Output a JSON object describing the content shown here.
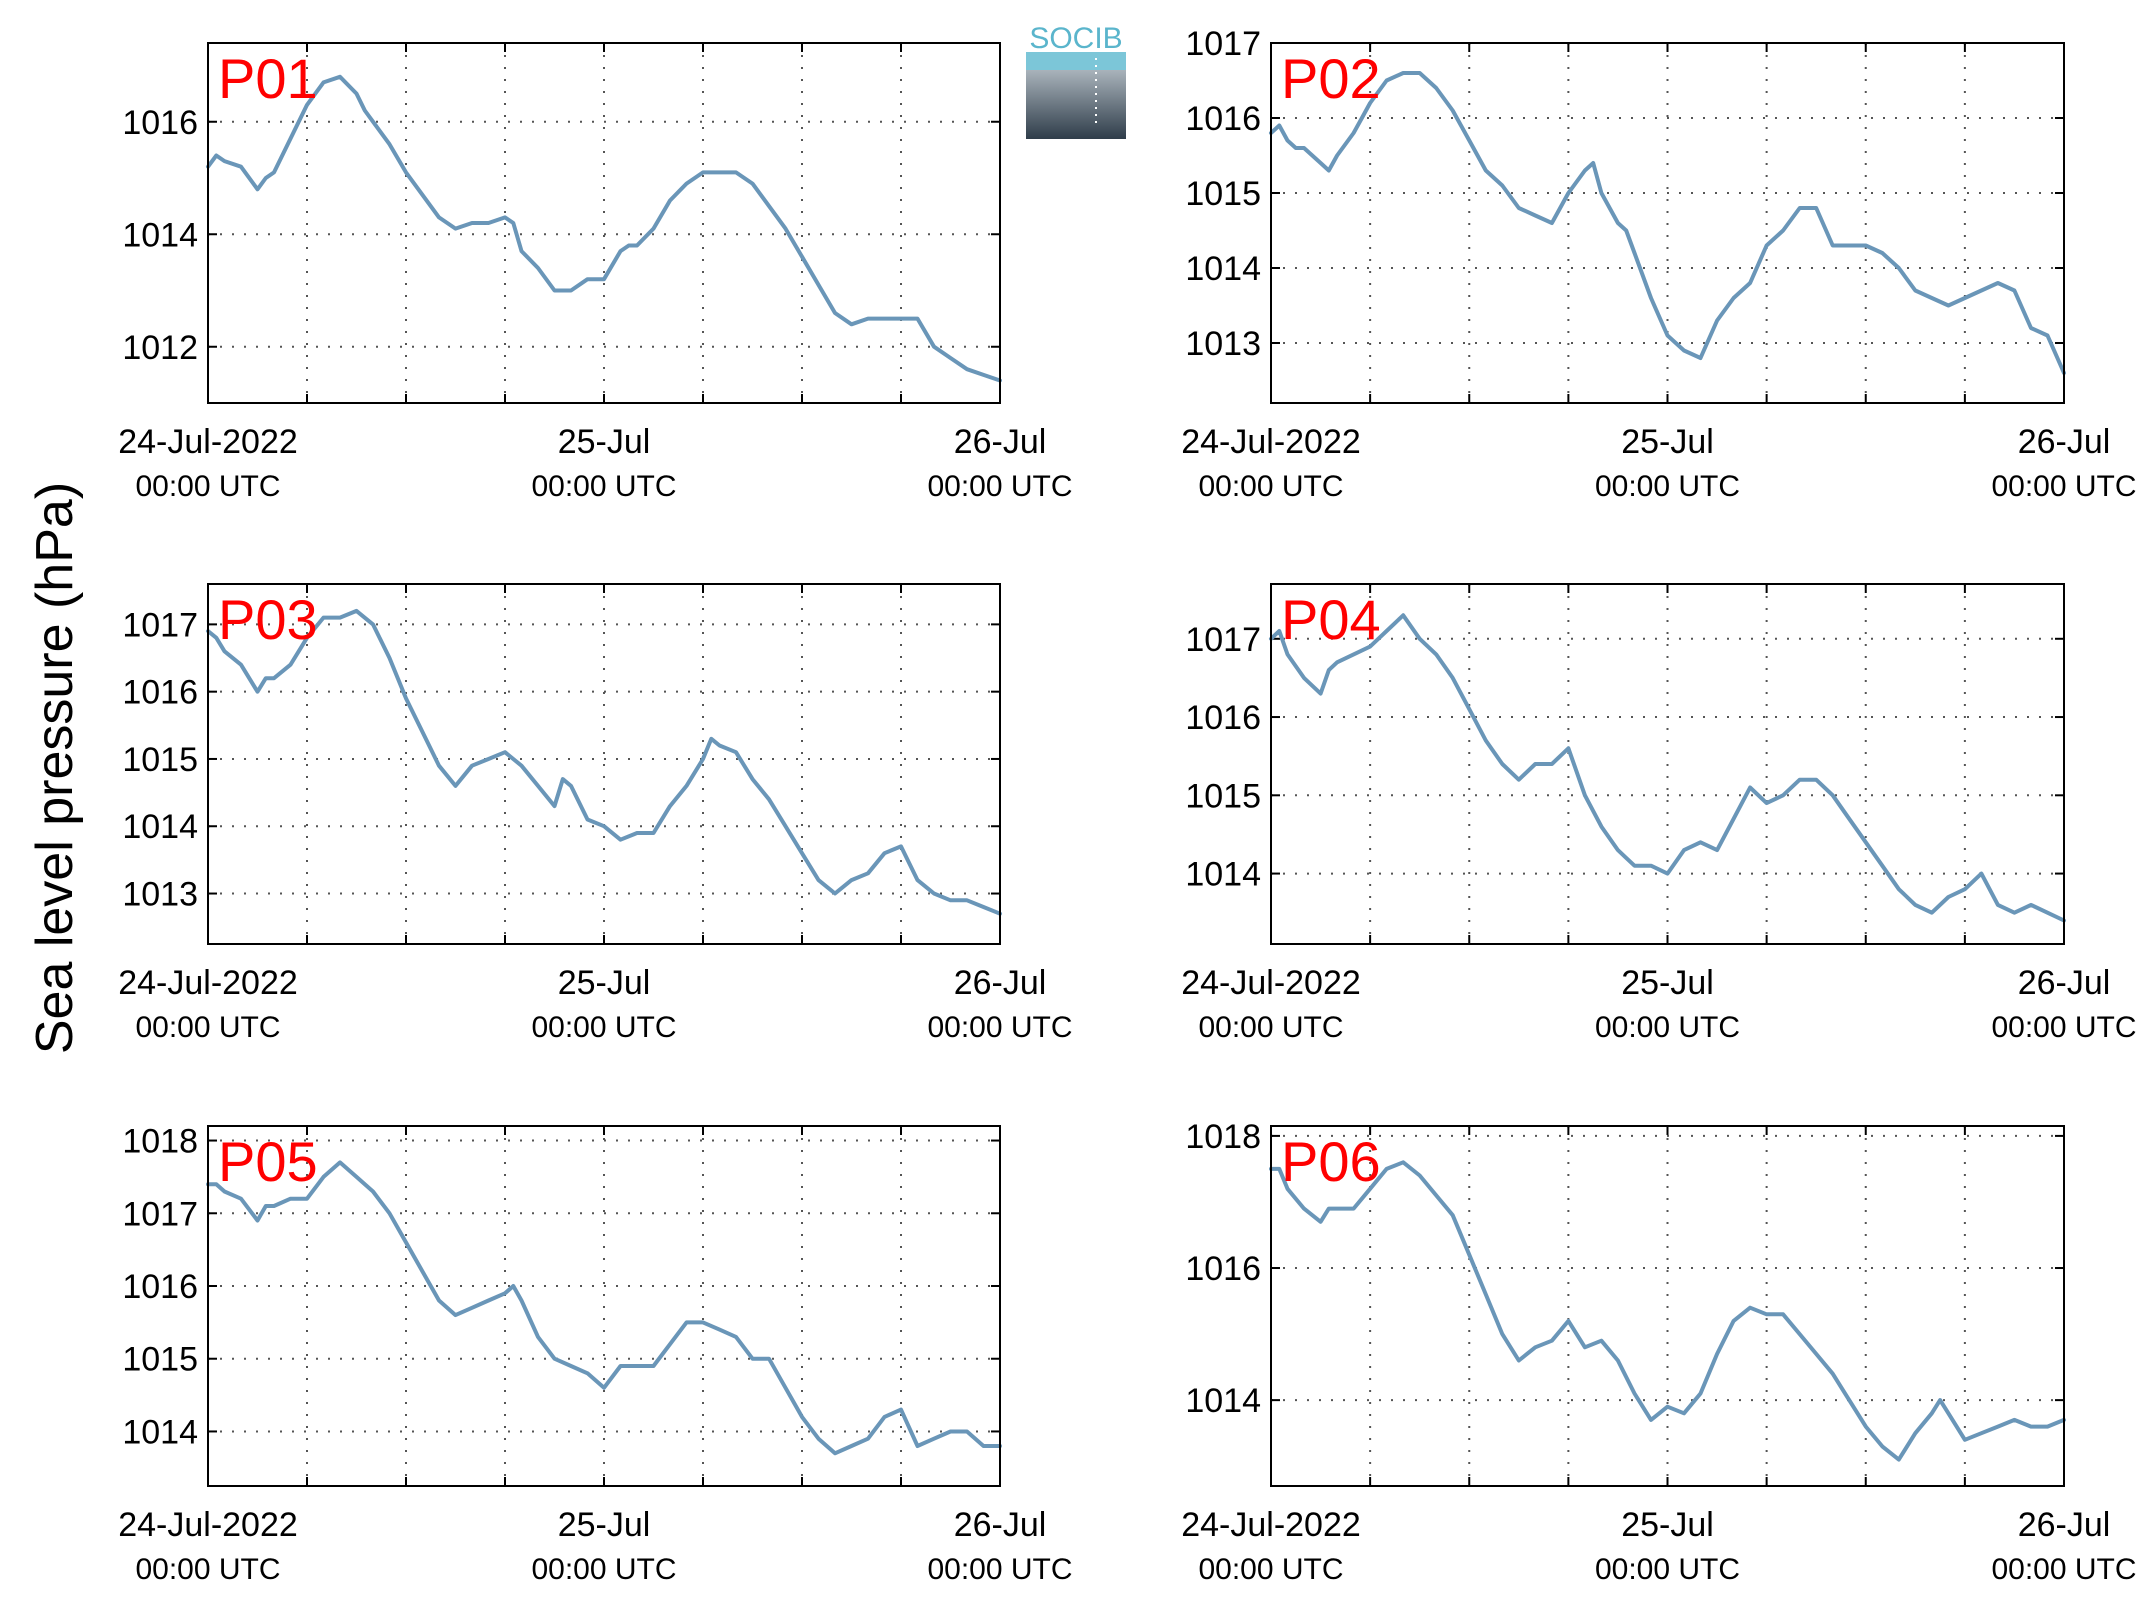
{
  "figure": {
    "ylabel": "Sea level pressure (hPa)",
    "logo_text": "SOCIB",
    "colors": {
      "line": "#6a96b8",
      "panel_label": "#ff0000",
      "grid": "#555555"
    }
  },
  "chart_data": [
    {
      "type": "line",
      "label": "P01",
      "xlim": [
        0,
        48
      ],
      "ylim": [
        1011.0,
        1017.4
      ],
      "yticks": [
        1012,
        1014,
        1016
      ],
      "xtick_labels": [
        {
          "date": "24-Jul-2022",
          "time": "00:00 UTC"
        },
        {
          "date": "25-Jul",
          "time": "00:00 UTC"
        },
        {
          "date": "26-Jul",
          "time": "00:00 UTC"
        }
      ],
      "x": [
        0,
        0.5,
        1,
        2,
        3,
        3.5,
        4,
        5,
        6,
        7,
        8,
        9,
        9.5,
        10,
        11,
        12,
        13,
        14,
        15,
        16,
        17,
        18,
        18.5,
        19,
        20,
        21,
        22,
        23,
        24,
        25,
        25.5,
        26,
        27,
        28,
        29,
        30,
        31,
        32,
        33,
        34,
        35,
        36,
        37,
        38,
        39,
        40,
        41,
        42,
        43,
        44,
        45,
        46,
        47,
        48
      ],
      "y": [
        1015.2,
        1015.4,
        1015.3,
        1015.2,
        1014.8,
        1015.0,
        1015.1,
        1015.7,
        1016.3,
        1016.7,
        1016.8,
        1016.5,
        1016.2,
        1016.0,
        1015.6,
        1015.1,
        1014.7,
        1014.3,
        1014.1,
        1014.2,
        1014.2,
        1014.3,
        1014.2,
        1013.7,
        1013.4,
        1013.0,
        1013.0,
        1013.2,
        1013.2,
        1013.7,
        1013.8,
        1013.8,
        1014.1,
        1014.6,
        1014.9,
        1015.1,
        1015.1,
        1015.1,
        1014.9,
        1014.5,
        1014.1,
        1013.6,
        1013.1,
        1012.6,
        1012.4,
        1012.5,
        1012.5,
        1012.5,
        1012.5,
        1012.0,
        1011.8,
        1011.6,
        1011.5,
        1011.4
      ]
    },
    {
      "type": "line",
      "label": "P02",
      "xlim": [
        0,
        48
      ],
      "ylim": [
        1012.2,
        1017.0
      ],
      "yticks": [
        1013,
        1014,
        1015,
        1016,
        1017
      ],
      "xtick_labels": [
        {
          "date": "24-Jul-2022",
          "time": "00:00 UTC"
        },
        {
          "date": "25-Jul",
          "time": "00:00 UTC"
        },
        {
          "date": "26-Jul",
          "time": "00:00 UTC"
        }
      ],
      "x": [
        0,
        0.5,
        1,
        1.5,
        2,
        3,
        3.5,
        4,
        5,
        5.5,
        6,
        7,
        8,
        9,
        10,
        11,
        12,
        13,
        14,
        15,
        16,
        17,
        18,
        19,
        19.5,
        20,
        21,
        21.5,
        22,
        23,
        24,
        25,
        26,
        27,
        28,
        29,
        30,
        31,
        32,
        33,
        34,
        35,
        36,
        37,
        38,
        39,
        40,
        41,
        42,
        43,
        44,
        45,
        46,
        47,
        48
      ],
      "y": [
        1015.8,
        1015.9,
        1015.7,
        1015.6,
        1015.6,
        1015.4,
        1015.3,
        1015.5,
        1015.8,
        1016.0,
        1016.2,
        1016.5,
        1016.6,
        1016.6,
        1016.4,
        1016.1,
        1015.7,
        1015.3,
        1015.1,
        1014.8,
        1014.7,
        1014.6,
        1015.0,
        1015.3,
        1015.4,
        1015.0,
        1014.6,
        1014.5,
        1014.2,
        1013.6,
        1013.1,
        1012.9,
        1012.8,
        1013.3,
        1013.6,
        1013.8,
        1014.3,
        1014.5,
        1014.8,
        1014.8,
        1014.3,
        1014.3,
        1014.3,
        1014.2,
        1014.0,
        1013.7,
        1013.6,
        1013.5,
        1013.6,
        1013.7,
        1013.8,
        1013.7,
        1013.2,
        1013.1,
        1012.6
      ]
    },
    {
      "type": "line",
      "label": "P03",
      "xlim": [
        0,
        48
      ],
      "ylim": [
        1012.25,
        1017.6
      ],
      "yticks": [
        1013,
        1014,
        1015,
        1016,
        1017
      ],
      "xtick_labels": [
        {
          "date": "24-Jul-2022",
          "time": "00:00 UTC"
        },
        {
          "date": "25-Jul",
          "time": "00:00 UTC"
        },
        {
          "date": "26-Jul",
          "time": "00:00 UTC"
        }
      ],
      "x": [
        0,
        0.5,
        1,
        2,
        3,
        3.5,
        4,
        5,
        6,
        7,
        8,
        9,
        10,
        11,
        12,
        13,
        14,
        15,
        16,
        17,
        18,
        19,
        20,
        21,
        21.5,
        22,
        23,
        24,
        25,
        26,
        27,
        28,
        29,
        30,
        30.5,
        31,
        32,
        33,
        34,
        35,
        36,
        37,
        38,
        39,
        40,
        41,
        42,
        43,
        44,
        45,
        46,
        47,
        48
      ],
      "y": [
        1016.9,
        1016.8,
        1016.6,
        1016.4,
        1016.0,
        1016.2,
        1016.2,
        1016.4,
        1016.8,
        1017.1,
        1017.1,
        1017.2,
        1017.0,
        1016.5,
        1015.9,
        1015.4,
        1014.9,
        1014.6,
        1014.9,
        1015.0,
        1015.1,
        1014.9,
        1014.6,
        1014.3,
        1014.7,
        1014.6,
        1014.1,
        1014.0,
        1013.8,
        1013.9,
        1013.9,
        1014.3,
        1014.6,
        1015.0,
        1015.3,
        1015.2,
        1015.1,
        1014.7,
        1014.4,
        1014.0,
        1013.6,
        1013.2,
        1013.0,
        1013.2,
        1013.3,
        1013.6,
        1013.7,
        1013.2,
        1013.0,
        1012.9,
        1012.9,
        1012.8,
        1012.7
      ]
    },
    {
      "type": "line",
      "label": "P04",
      "xlim": [
        0,
        48
      ],
      "ylim": [
        1013.1,
        1017.7
      ],
      "yticks": [
        1014,
        1015,
        1016,
        1017
      ],
      "xtick_labels": [
        {
          "date": "24-Jul-2022",
          "time": "00:00 UTC"
        },
        {
          "date": "25-Jul",
          "time": "00:00 UTC"
        },
        {
          "date": "26-Jul",
          "time": "00:00 UTC"
        }
      ],
      "x": [
        0,
        0.5,
        1,
        2,
        3,
        3.5,
        4,
        5,
        6,
        7,
        8,
        9,
        10,
        11,
        12,
        13,
        14,
        15,
        16,
        17,
        18,
        19,
        20,
        21,
        21.5,
        22,
        23,
        24,
        25,
        26,
        27,
        28,
        29,
        30,
        31,
        32,
        33,
        34,
        35,
        36,
        37,
        38,
        39,
        40,
        41,
        42,
        43,
        44,
        45,
        46,
        47,
        48
      ],
      "y": [
        1017.0,
        1017.1,
        1016.8,
        1016.5,
        1016.3,
        1016.6,
        1016.7,
        1016.8,
        1016.9,
        1017.1,
        1017.3,
        1017.0,
        1016.8,
        1016.5,
        1016.1,
        1015.7,
        1015.4,
        1015.2,
        1015.4,
        1015.4,
        1015.6,
        1015.0,
        1014.6,
        1014.3,
        1014.2,
        1014.1,
        1014.1,
        1014.0,
        1014.3,
        1014.4,
        1014.3,
        1014.7,
        1015.1,
        1014.9,
        1015.0,
        1015.2,
        1015.2,
        1015.0,
        1014.7,
        1014.4,
        1014.1,
        1013.8,
        1013.6,
        1013.5,
        1013.7,
        1013.8,
        1014.0,
        1013.6,
        1013.5,
        1013.6,
        1013.5,
        1013.4
      ]
    },
    {
      "type": "line",
      "label": "P05",
      "xlim": [
        0,
        48
      ],
      "ylim": [
        1013.25,
        1018.2
      ],
      "yticks": [
        1014,
        1015,
        1016,
        1017,
        1018
      ],
      "xtick_labels": [
        {
          "date": "24-Jul-2022",
          "time": "00:00 UTC"
        },
        {
          "date": "25-Jul",
          "time": "00:00 UTC"
        },
        {
          "date": "26-Jul",
          "time": "00:00 UTC"
        }
      ],
      "x": [
        0,
        0.5,
        1,
        2,
        3,
        3.5,
        4,
        5,
        6,
        7,
        8,
        9,
        10,
        11,
        12,
        13,
        14,
        15,
        16,
        17,
        18,
        18.5,
        19,
        20,
        21,
        22,
        23,
        24,
        25,
        26,
        27,
        28,
        29,
        30,
        31,
        32,
        33,
        34,
        35,
        36,
        37,
        38,
        39,
        40,
        41,
        42,
        43,
        44,
        45,
        46,
        47,
        48
      ],
      "y": [
        1017.4,
        1017.4,
        1017.3,
        1017.2,
        1016.9,
        1017.1,
        1017.1,
        1017.2,
        1017.2,
        1017.5,
        1017.7,
        1017.5,
        1017.3,
        1017.0,
        1016.6,
        1016.2,
        1015.8,
        1015.6,
        1015.7,
        1015.8,
        1015.9,
        1016.0,
        1015.8,
        1015.3,
        1015.0,
        1014.9,
        1014.8,
        1014.6,
        1014.9,
        1014.9,
        1014.9,
        1015.2,
        1015.5,
        1015.5,
        1015.4,
        1015.3,
        1015.0,
        1015.0,
        1014.6,
        1014.2,
        1013.9,
        1013.7,
        1013.8,
        1013.9,
        1014.2,
        1014.3,
        1013.8,
        1013.9,
        1014.0,
        1014.0,
        1013.8,
        1013.8
      ]
    },
    {
      "type": "line",
      "label": "P06",
      "xlim": [
        0,
        48
      ],
      "ylim": [
        1012.7,
        1018.15
      ],
      "yticks": [
        1014,
        1016,
        1018
      ],
      "xtick_labels": [
        {
          "date": "24-Jul-2022",
          "time": "00:00 UTC"
        },
        {
          "date": "25-Jul",
          "time": "00:00 UTC"
        },
        {
          "date": "26-Jul",
          "time": "00:00 UTC"
        }
      ],
      "x": [
        0,
        0.5,
        1,
        2,
        3,
        3.5,
        4,
        5,
        6,
        7,
        8,
        9,
        10,
        11,
        12,
        13,
        14,
        15,
        16,
        17,
        18,
        19,
        20,
        21,
        22,
        23,
        24,
        25,
        26,
        27,
        28,
        29,
        30,
        31,
        32,
        33,
        34,
        35,
        36,
        37,
        38,
        39,
        40,
        40.5,
        41,
        42,
        43,
        44,
        45,
        46,
        47,
        48
      ],
      "y": [
        1017.5,
        1017.5,
        1017.2,
        1016.9,
        1016.7,
        1016.9,
        1016.9,
        1016.9,
        1017.2,
        1017.5,
        1017.6,
        1017.4,
        1017.1,
        1016.8,
        1016.2,
        1015.6,
        1015.0,
        1014.6,
        1014.8,
        1014.9,
        1015.2,
        1014.8,
        1014.9,
        1014.6,
        1014.1,
        1013.7,
        1013.9,
        1013.8,
        1014.1,
        1014.7,
        1015.2,
        1015.4,
        1015.3,
        1015.3,
        1015.0,
        1014.7,
        1014.4,
        1014.0,
        1013.6,
        1013.3,
        1013.1,
        1013.5,
        1013.8,
        1014.0,
        1013.8,
        1013.4,
        1013.5,
        1013.6,
        1013.7,
        1013.6,
        1013.6,
        1013.7
      ]
    }
  ]
}
